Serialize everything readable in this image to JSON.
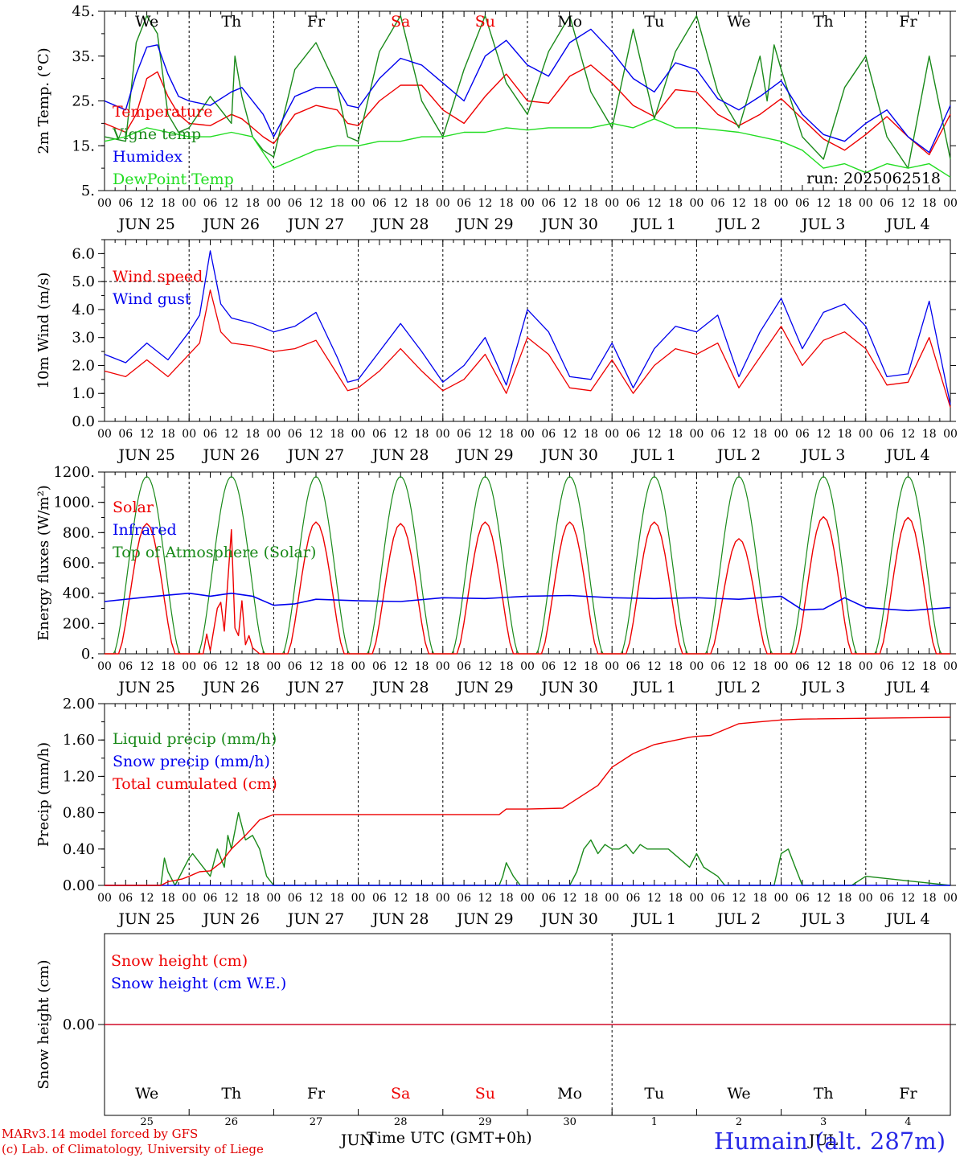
{
  "colors": {
    "red": "#ee0000",
    "green": "#1a8a1a",
    "blue": "#0000ee",
    "lime": "#22dd22",
    "dark_blue": "#2a2ae6"
  },
  "days": [
    "We",
    "Th",
    "Fr",
    "Sa",
    "Su",
    "Mo",
    "Tu",
    "We",
    "Th",
    "Fr"
  ],
  "weekend_day_indices": [
    3,
    4
  ],
  "dates": [
    "JUN 25",
    "JUN 26",
    "JUN 27",
    "JUN 28",
    "JUN 29",
    "JUN 30",
    "JUL  1",
    "JUL  2",
    "JUL  3",
    "JUL  4"
  ],
  "hour_ticks": [
    "00",
    "06",
    "12",
    "18"
  ],
  "final_hour": "00",
  "bottom_day_numbers": [
    "25",
    "26",
    "27",
    "28",
    "29",
    "30",
    "1",
    "2",
    "3",
    "4"
  ],
  "bottom_month_labels": [
    "JUN",
    "JUL"
  ],
  "run_label": "run: 2025062518",
  "footer": {
    "credit_line1": "MARv3.14 model forced by GFS",
    "credit_line2": "(c) Lab. of Climatology, University of Liege",
    "xlabel": "Time UTC (GMT+0h)",
    "station": "Humain (alt. 287m)"
  },
  "chart_data": [
    {
      "type": "line",
      "ylabel": "2m Temp. (°C)",
      "ylim": [
        5,
        45
      ],
      "yticks": [
        5,
        15,
        25,
        35,
        45
      ],
      "ytick_labels": [
        "5.",
        "15.",
        "25.",
        "35.",
        "45."
      ],
      "x_unit": "hours since JUN 25 00 UTC",
      "xlim": [
        0,
        240
      ],
      "series": [
        {
          "name": "Temperature",
          "color": "red",
          "x": [
            0,
            6,
            9,
            12,
            15,
            18,
            21,
            24,
            30,
            36,
            39,
            42,
            45,
            48,
            54,
            60,
            66,
            69,
            72,
            78,
            84,
            90,
            96,
            102,
            108,
            114,
            120,
            126,
            132,
            138,
            144,
            150,
            156,
            162,
            168,
            174,
            180,
            186,
            192,
            198,
            204,
            210,
            216,
            222,
            228,
            234,
            240
          ],
          "y": [
            20,
            18,
            22,
            30,
            31.5,
            26,
            22,
            20,
            19.5,
            22,
            21,
            19,
            17,
            15.5,
            22,
            24,
            23,
            20,
            19.5,
            25,
            28.5,
            28.5,
            23,
            20,
            26,
            31,
            25,
            24.5,
            30.5,
            33,
            29,
            24,
            21.5,
            27.5,
            27,
            22,
            19.5,
            22,
            25.5,
            21,
            16.5,
            14,
            17.5,
            21.5,
            17,
            13,
            22
          ]
        },
        {
          "name": "Vigne temp",
          "color": "green",
          "x": [
            0,
            6,
            9,
            12,
            15,
            18,
            21,
            24,
            30,
            36,
            37,
            39,
            42,
            45,
            48,
            54,
            60,
            66,
            69,
            72,
            78,
            84,
            90,
            96,
            102,
            108,
            114,
            120,
            126,
            132,
            138,
            144,
            150,
            156,
            162,
            168,
            174,
            180,
            186,
            188,
            190,
            192,
            198,
            204,
            210,
            216,
            222,
            228,
            234,
            240
          ],
          "y": [
            17,
            16,
            38,
            44,
            40,
            22,
            18,
            19,
            26,
            20,
            35,
            26,
            17,
            14,
            12.5,
            32,
            38,
            28,
            17,
            16,
            36,
            44,
            25,
            17,
            32,
            44,
            29,
            22,
            36,
            44,
            27,
            19,
            41,
            21,
            36,
            44,
            27,
            19,
            35,
            25,
            37.5,
            32,
            17,
            12,
            28,
            35,
            17,
            10,
            35,
            12
          ]
        },
        {
          "name": "Humidex",
          "color": "blue",
          "x": [
            0,
            6,
            9,
            12,
            15,
            18,
            21,
            24,
            30,
            36,
            39,
            42,
            45,
            48,
            54,
            60,
            66,
            69,
            72,
            78,
            84,
            90,
            96,
            102,
            108,
            114,
            120,
            126,
            132,
            138,
            144,
            150,
            156,
            162,
            168,
            174,
            180,
            186,
            192,
            198,
            204,
            210,
            216,
            222,
            228,
            234,
            240
          ],
          "y": [
            25,
            23,
            31,
            37,
            37.5,
            31,
            26,
            25,
            24,
            27,
            28,
            25,
            22,
            17,
            26,
            28,
            28,
            24,
            23.5,
            30,
            34.5,
            33,
            29,
            25,
            35,
            38.5,
            33,
            30.5,
            38,
            41,
            36,
            30,
            27,
            33.5,
            32,
            25.5,
            23,
            26,
            29.5,
            22,
            17.5,
            16,
            20,
            23,
            17,
            13.5,
            24
          ]
        },
        {
          "name": "DewPoint Temp",
          "color": "lime",
          "x": [
            0,
            6,
            12,
            18,
            24,
            30,
            36,
            42,
            48,
            54,
            60,
            66,
            72,
            78,
            84,
            90,
            96,
            102,
            108,
            114,
            120,
            126,
            132,
            138,
            144,
            150,
            156,
            162,
            168,
            174,
            180,
            186,
            192,
            198,
            204,
            210,
            216,
            222,
            228,
            234,
            240
          ],
          "y": [
            16,
            17,
            19,
            18,
            17,
            17,
            18,
            17,
            10,
            12,
            14,
            15,
            15,
            16,
            16,
            17,
            17,
            18,
            18,
            19,
            18.5,
            19,
            19,
            19,
            20,
            19,
            21,
            19,
            19,
            18.5,
            18,
            17,
            16,
            14,
            10,
            11,
            9,
            11,
            10,
            11,
            8
          ]
        }
      ]
    },
    {
      "type": "line",
      "ylabel": "10m Wind (m/s)",
      "ylim": [
        0,
        6.5
      ],
      "yticks": [
        0,
        1,
        2,
        3,
        4,
        5,
        6
      ],
      "ytick_labels": [
        "0.0",
        "1.0",
        "2.0",
        "3.0",
        "4.0",
        "5.0",
        "6.0"
      ],
      "reference_line": 5.0,
      "x_unit": "hours since JUN 25 00 UTC",
      "xlim": [
        0,
        240
      ],
      "series": [
        {
          "name": "Wind speed",
          "color": "red",
          "x": [
            0,
            6,
            12,
            18,
            24,
            27,
            30,
            33,
            36,
            42,
            48,
            54,
            60,
            66,
            69,
            72,
            78,
            84,
            90,
            96,
            102,
            108,
            114,
            120,
            126,
            132,
            138,
            144,
            150,
            156,
            162,
            168,
            174,
            180,
            186,
            192,
            198,
            204,
            210,
            216,
            222,
            228,
            234,
            240
          ],
          "y": [
            1.8,
            1.6,
            2.2,
            1.6,
            2.4,
            2.8,
            4.7,
            3.2,
            2.8,
            2.7,
            2.5,
            2.6,
            2.9,
            1.7,
            1.1,
            1.2,
            1.8,
            2.6,
            1.8,
            1.1,
            1.5,
            2.4,
            1.0,
            3.0,
            2.4,
            1.2,
            1.1,
            2.2,
            1.0,
            2.0,
            2.6,
            2.4,
            2.8,
            1.2,
            2.3,
            3.4,
            2.0,
            2.9,
            3.2,
            2.6,
            1.3,
            1.4,
            3.0,
            0.5
          ]
        },
        {
          "name": "Wind gust",
          "color": "blue",
          "x": [
            0,
            6,
            12,
            18,
            24,
            27,
            30,
            33,
            36,
            42,
            48,
            54,
            60,
            66,
            69,
            72,
            78,
            84,
            90,
            96,
            102,
            108,
            114,
            120,
            126,
            132,
            138,
            144,
            150,
            156,
            162,
            168,
            174,
            180,
            186,
            192,
            198,
            204,
            210,
            216,
            222,
            228,
            234,
            240
          ],
          "y": [
            2.4,
            2.1,
            2.8,
            2.2,
            3.2,
            3.8,
            6.1,
            4.2,
            3.7,
            3.5,
            3.2,
            3.4,
            3.9,
            2.3,
            1.4,
            1.5,
            2.5,
            3.5,
            2.5,
            1.4,
            2.0,
            3.0,
            1.3,
            4.0,
            3.2,
            1.6,
            1.5,
            2.8,
            1.2,
            2.6,
            3.4,
            3.2,
            3.8,
            1.6,
            3.2,
            4.4,
            2.6,
            3.9,
            4.2,
            3.4,
            1.6,
            1.7,
            4.3,
            0.6
          ]
        }
      ]
    },
    {
      "type": "line",
      "ylabel": "Energy fluxes (W/m²)",
      "ylim": [
        0,
        1200
      ],
      "yticks": [
        0,
        200,
        400,
        600,
        800,
        1000,
        1200
      ],
      "ytick_labels": [
        "0.",
        "200.",
        "400.",
        "600.",
        "800.",
        "1000.",
        "1200."
      ],
      "x_unit": "hours since JUN 25 00 UTC",
      "xlim": [
        0,
        240
      ],
      "series": [
        {
          "name": "Solar",
          "color": "red",
          "daily_peak": [
            860,
            820,
            870,
            860,
            870,
            870,
            870,
            760,
            905,
            900
          ],
          "cloudy_day_values": {
            "day_index": 1,
            "hours": [
              0,
              4,
              5,
              6,
              8,
              9,
              10,
              12,
              13,
              14,
              15,
              16,
              17,
              18,
              20,
              24
            ],
            "values": [
              0,
              0,
              130,
              20,
              300,
              340,
              150,
              820,
              170,
              120,
              350,
              60,
              120,
              40,
              0,
              0
            ]
          }
        },
        {
          "name": "Infrared",
          "color": "blue",
          "x": [
            0,
            12,
            24,
            30,
            36,
            42,
            48,
            54,
            60,
            72,
            84,
            96,
            108,
            120,
            132,
            144,
            156,
            168,
            180,
            192,
            198,
            204,
            210,
            216,
            228,
            240
          ],
          "y": [
            345,
            375,
            400,
            380,
            400,
            380,
            320,
            330,
            360,
            350,
            345,
            370,
            365,
            380,
            385,
            370,
            365,
            370,
            360,
            380,
            290,
            295,
            370,
            305,
            285,
            305
          ]
        },
        {
          "name": "Top of Atmosphere (Solar)",
          "color": "green",
          "daily_peak": 1170,
          "sunrise_hour": 2.5,
          "sunset_hour": 21.5
        }
      ]
    },
    {
      "type": "line",
      "ylabel": "Precip (mm/h)",
      "ylim": [
        0,
        2.0
      ],
      "yticks": [
        0,
        0.4,
        0.8,
        1.2,
        1.6,
        2.0
      ],
      "ytick_labels": [
        "0.00",
        "0.40",
        "0.80",
        "1.20",
        "1.60",
        "2.00"
      ],
      "x_unit": "hours since JUN 25 00 UTC",
      "xlim": [
        0,
        240
      ],
      "series": [
        {
          "name": "Liquid precip (mm/h)",
          "color": "green",
          "x": [
            0,
            16,
            17,
            18,
            20,
            22,
            24,
            25,
            28,
            30,
            32,
            34,
            35,
            36,
            38,
            40,
            42,
            44,
            45,
            46,
            48,
            112,
            113,
            114,
            116,
            118,
            120,
            132,
            134,
            136,
            138,
            140,
            142,
            144,
            146,
            148,
            150,
            152,
            154,
            160,
            166,
            168,
            170,
            174,
            176,
            178,
            180,
            190,
            192,
            194,
            196,
            198,
            200,
            210,
            212,
            214,
            216,
            240
          ],
          "y": [
            0,
            0,
            0.3,
            0.15,
            0,
            0.15,
            0.3,
            0.35,
            0.2,
            0.1,
            0.4,
            0.2,
            0.55,
            0.4,
            0.8,
            0.5,
            0.55,
            0.4,
            0.25,
            0.1,
            0,
            0,
            0.1,
            0.25,
            0.1,
            0,
            0,
            0,
            0.15,
            0.4,
            0.5,
            0.35,
            0.45,
            0.4,
            0.4,
            0.45,
            0.35,
            0.45,
            0.4,
            0.4,
            0.2,
            0.35,
            0.2,
            0.1,
            0,
            0,
            0,
            0,
            0.35,
            0.4,
            0.2,
            0,
            0,
            0,
            0,
            0.05,
            0.1,
            0
          ]
        },
        {
          "name": "Snow precip (mm/h)",
          "color": "blue",
          "x": [
            0,
            240
          ],
          "y": [
            0,
            0
          ]
        },
        {
          "name": "Total cumulated (cm)",
          "color": "red",
          "x": [
            0,
            16,
            18,
            22,
            24,
            27,
            30,
            33,
            36,
            40,
            44,
            48,
            112,
            114,
            120,
            130,
            132,
            140,
            144,
            150,
            156,
            166,
            168,
            172,
            180,
            186,
            192,
            198,
            240
          ],
          "y": [
            0,
            0,
            0.04,
            0.07,
            0.1,
            0.15,
            0.16,
            0.25,
            0.4,
            0.55,
            0.72,
            0.78,
            0.78,
            0.84,
            0.84,
            0.85,
            0.9,
            1.1,
            1.3,
            1.45,
            1.55,
            1.63,
            1.64,
            1.65,
            1.78,
            1.8,
            1.82,
            1.83,
            1.85
          ]
        }
      ]
    },
    {
      "type": "line",
      "ylabel": "Snow height (cm)",
      "ylim": [
        -1,
        1
      ],
      "yticks": [
        0
      ],
      "ytick_labels": [
        "0.00"
      ],
      "x_unit": "hours since JUN 25 00 UTC",
      "xlim": [
        0,
        240
      ],
      "series": [
        {
          "name": "Snow height (cm)",
          "color": "red",
          "x": [
            0,
            240
          ],
          "y": [
            0,
            0
          ]
        },
        {
          "name": "Snow height (cm W.E.)",
          "color": "blue",
          "x": [
            0,
            240
          ],
          "y": [
            0,
            0
          ]
        }
      ]
    }
  ]
}
